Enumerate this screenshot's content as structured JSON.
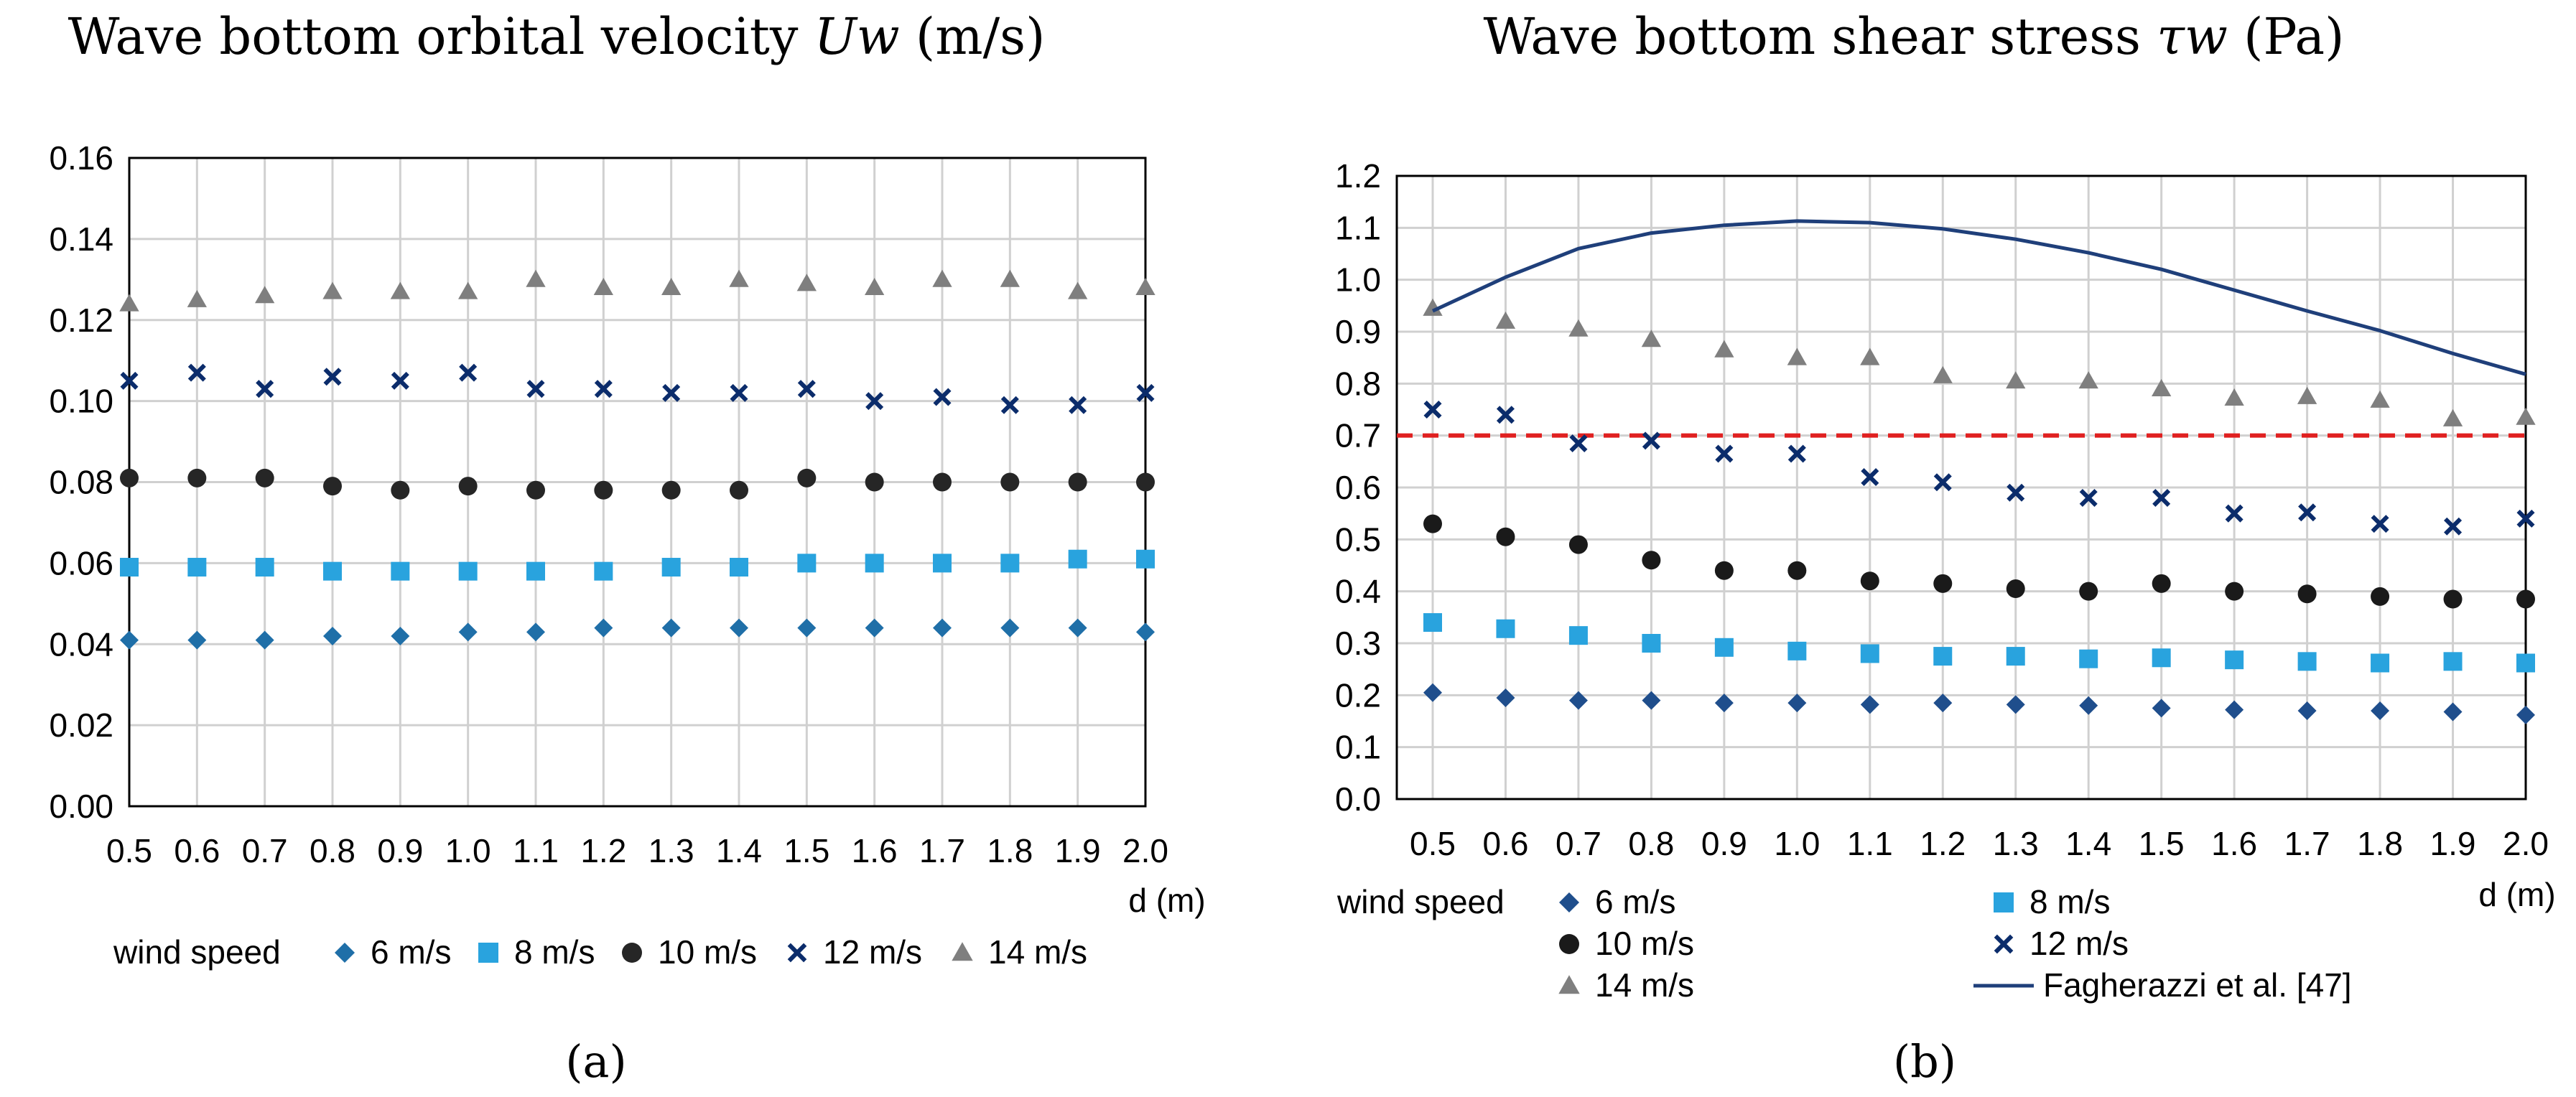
{
  "chart_data": [
    {
      "type": "scatter",
      "panel_label": "(a)",
      "title_text": "Wave bottom orbital velocity ",
      "title_symbol": "Uw",
      "title_unit": " (m/s)",
      "xlabel": "d (m)",
      "legend_title": "wind speed",
      "x": [
        0.5,
        0.6,
        0.7,
        0.8,
        0.9,
        1.0,
        1.1,
        1.2,
        1.3,
        1.4,
        1.5,
        1.6,
        1.7,
        1.8,
        1.9,
        2.0
      ],
      "x_tick_labels": [
        "0.5",
        "0.6",
        "0.7",
        "0.8",
        "0.9",
        "1.0",
        "1.1",
        "1.2",
        "1.3",
        "1.4",
        "1.5",
        "1.6",
        "1.7",
        "1.8",
        "1.9",
        "2.0"
      ],
      "ylim": [
        0,
        0.16
      ],
      "y_tick_labels": [
        "0.00",
        "0.02",
        "0.04",
        "0.06",
        "0.08",
        "0.10",
        "0.12",
        "0.14",
        "0.16"
      ],
      "grid": true,
      "series": [
        {
          "name": "6 m/s",
          "marker": "diamond",
          "color": "#1f6fa8",
          "values": [
            0.041,
            0.041,
            0.041,
            0.042,
            0.042,
            0.043,
            0.043,
            0.044,
            0.044,
            0.044,
            0.044,
            0.044,
            0.044,
            0.044,
            0.044,
            0.043
          ]
        },
        {
          "name": "8 m/s",
          "marker": "square",
          "color": "#29a3de",
          "values": [
            0.059,
            0.059,
            0.059,
            0.058,
            0.058,
            0.058,
            0.058,
            0.058,
            0.059,
            0.059,
            0.06,
            0.06,
            0.06,
            0.06,
            0.061,
            0.061
          ]
        },
        {
          "name": "10 m/s",
          "marker": "circle",
          "color": "#262626",
          "values": [
            0.081,
            0.081,
            0.081,
            0.079,
            0.078,
            0.079,
            0.078,
            0.078,
            0.078,
            0.078,
            0.081,
            0.08,
            0.08,
            0.08,
            0.08,
            0.08
          ]
        },
        {
          "name": "12 m/s",
          "marker": "cross",
          "color": "#0b2c6b",
          "values": [
            0.105,
            0.107,
            0.103,
            0.106,
            0.105,
            0.107,
            0.103,
            0.103,
            0.102,
            0.102,
            0.103,
            0.1,
            0.101,
            0.099,
            0.099,
            0.102
          ]
        },
        {
          "name": "14 m/s",
          "marker": "triangle",
          "color": "#7f7f7f",
          "values": [
            0.124,
            0.125,
            0.126,
            0.127,
            0.127,
            0.127,
            0.13,
            0.128,
            0.128,
            0.13,
            0.129,
            0.128,
            0.13,
            0.13,
            0.127,
            0.128
          ]
        }
      ]
    },
    {
      "type": "scatter",
      "panel_label": "(b)",
      "title_text": "Wave bottom shear stress ",
      "title_symbol": "τw",
      "title_unit": " (Pa)",
      "xlabel": "d (m)",
      "legend_title": "wind speed",
      "x": [
        0.5,
        0.6,
        0.7,
        0.8,
        0.9,
        1.0,
        1.1,
        1.2,
        1.3,
        1.4,
        1.5,
        1.6,
        1.7,
        1.8,
        1.9,
        2.0
      ],
      "x_tick_labels": [
        "0.5",
        "0.6",
        "0.7",
        "0.8",
        "0.9",
        "1.0",
        "1.1",
        "1.2",
        "1.3",
        "1.4",
        "1.5",
        "1.6",
        "1.7",
        "1.8",
        "1.9",
        "2.0"
      ],
      "ylim": [
        0,
        1.2
      ],
      "y_tick_labels": [
        "0.0",
        "0.1",
        "0.2",
        "0.3",
        "0.4",
        "0.5",
        "0.6",
        "0.7",
        "0.8",
        "0.9",
        "1.0",
        "1.1",
        "1.2"
      ],
      "grid": true,
      "threshold": {
        "value": 0.7,
        "color": "#e02020"
      },
      "series": [
        {
          "name": "6 m/s",
          "marker": "diamond",
          "color": "#1f4e8c",
          "values": [
            0.205,
            0.195,
            0.19,
            0.19,
            0.185,
            0.185,
            0.182,
            0.185,
            0.182,
            0.18,
            0.175,
            0.172,
            0.17,
            0.17,
            0.168,
            0.162
          ]
        },
        {
          "name": "8 m/s",
          "marker": "square",
          "color": "#29a3de",
          "values": [
            0.34,
            0.328,
            0.315,
            0.3,
            0.292,
            0.285,
            0.28,
            0.275,
            0.275,
            0.27,
            0.272,
            0.268,
            0.265,
            0.262,
            0.265,
            0.262
          ]
        },
        {
          "name": "10 m/s",
          "marker": "circle",
          "color": "#1a1a1a",
          "values": [
            0.53,
            0.505,
            0.49,
            0.46,
            0.44,
            0.44,
            0.42,
            0.415,
            0.405,
            0.4,
            0.415,
            0.4,
            0.395,
            0.39,
            0.385,
            0.385
          ]
        },
        {
          "name": "12 m/s",
          "marker": "cross",
          "color": "#0b2c6b",
          "values": [
            0.75,
            0.74,
            0.685,
            0.69,
            0.665,
            0.665,
            0.62,
            0.61,
            0.59,
            0.58,
            0.58,
            0.55,
            0.552,
            0.53,
            0.525,
            0.54
          ]
        },
        {
          "name": "14 m/s",
          "marker": "triangle",
          "color": "#7f7f7f",
          "values": [
            0.945,
            0.92,
            0.905,
            0.885,
            0.865,
            0.85,
            0.85,
            0.815,
            0.805,
            0.805,
            0.79,
            0.772,
            0.775,
            0.768,
            0.732,
            0.735
          ]
        },
        {
          "name": "Fagherazzi et al. [47]",
          "marker": "line",
          "color": "#1f3f7a",
          "values": [
            0.94,
            1.005,
            1.06,
            1.09,
            1.105,
            1.113,
            1.11,
            1.098,
            1.078,
            1.052,
            1.02,
            0.98,
            0.94,
            0.902,
            0.858,
            0.818
          ]
        }
      ]
    }
  ]
}
